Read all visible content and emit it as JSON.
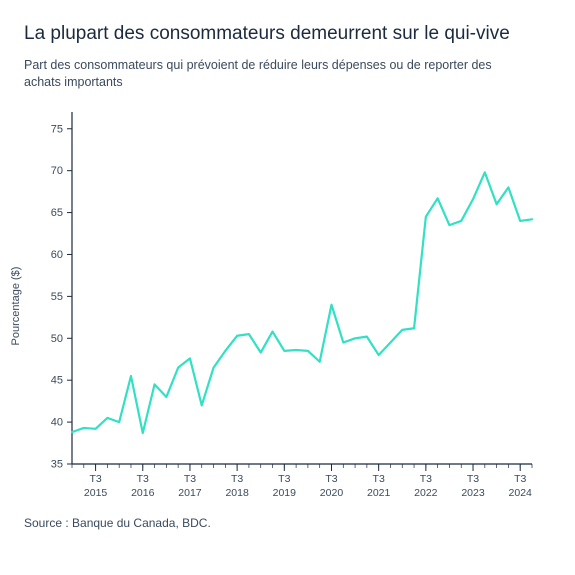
{
  "title": "La plupart des consommateurs demeurrent sur le qui-vive",
  "subtitle": "Part des consommateurs qui prévoient de réduire leurs dépenses ou de reporter des achats importants",
  "ylabel": "Pourcentage ($)",
  "source": "Source : Banque du Canada, BDC.",
  "chart": {
    "type": "line",
    "background_color": "#ffffff",
    "line_color": "#32e0c4",
    "line_width": 2.2,
    "axis_color": "#1b2a3d",
    "tick_color": "#1b2a3d",
    "text_color": "#3a4a5c",
    "ylim": [
      35,
      77
    ],
    "yticks": [
      35,
      40,
      45,
      50,
      55,
      60,
      65,
      70,
      75
    ],
    "xlim": [
      0,
      39
    ],
    "x_tick_positions": [
      2,
      6,
      10,
      14,
      18,
      22,
      26,
      30,
      34,
      38
    ],
    "x_tick_labels": [
      "T3",
      "T3",
      "T3",
      "T3",
      "T3",
      "T3",
      "T3",
      "T3",
      "T3",
      "T3"
    ],
    "x_year_labels": [
      "2015",
      "2016",
      "2017",
      "2018",
      "2019",
      "2020",
      "2021",
      "2022",
      "2023",
      "2024"
    ],
    "x_minor_tick_step": 1,
    "values": [
      38.8,
      39.3,
      39.2,
      40.5,
      40.0,
      45.5,
      38.7,
      44.5,
      43.0,
      46.5,
      47.6,
      42.0,
      46.5,
      48.5,
      50.3,
      50.5,
      48.3,
      50.8,
      48.5,
      48.6,
      48.5,
      47.2,
      54.0,
      49.5,
      50.0,
      50.2,
      48.0,
      49.5,
      51.0,
      51.2,
      64.5,
      66.7,
      63.5,
      64.0,
      66.6,
      69.8,
      66.0,
      68.0,
      64.0,
      64.2
    ],
    "title_fontsize": 19,
    "subtitle_fontsize": 12.5,
    "tick_fontsize": 11,
    "label_fontsize": 11
  }
}
